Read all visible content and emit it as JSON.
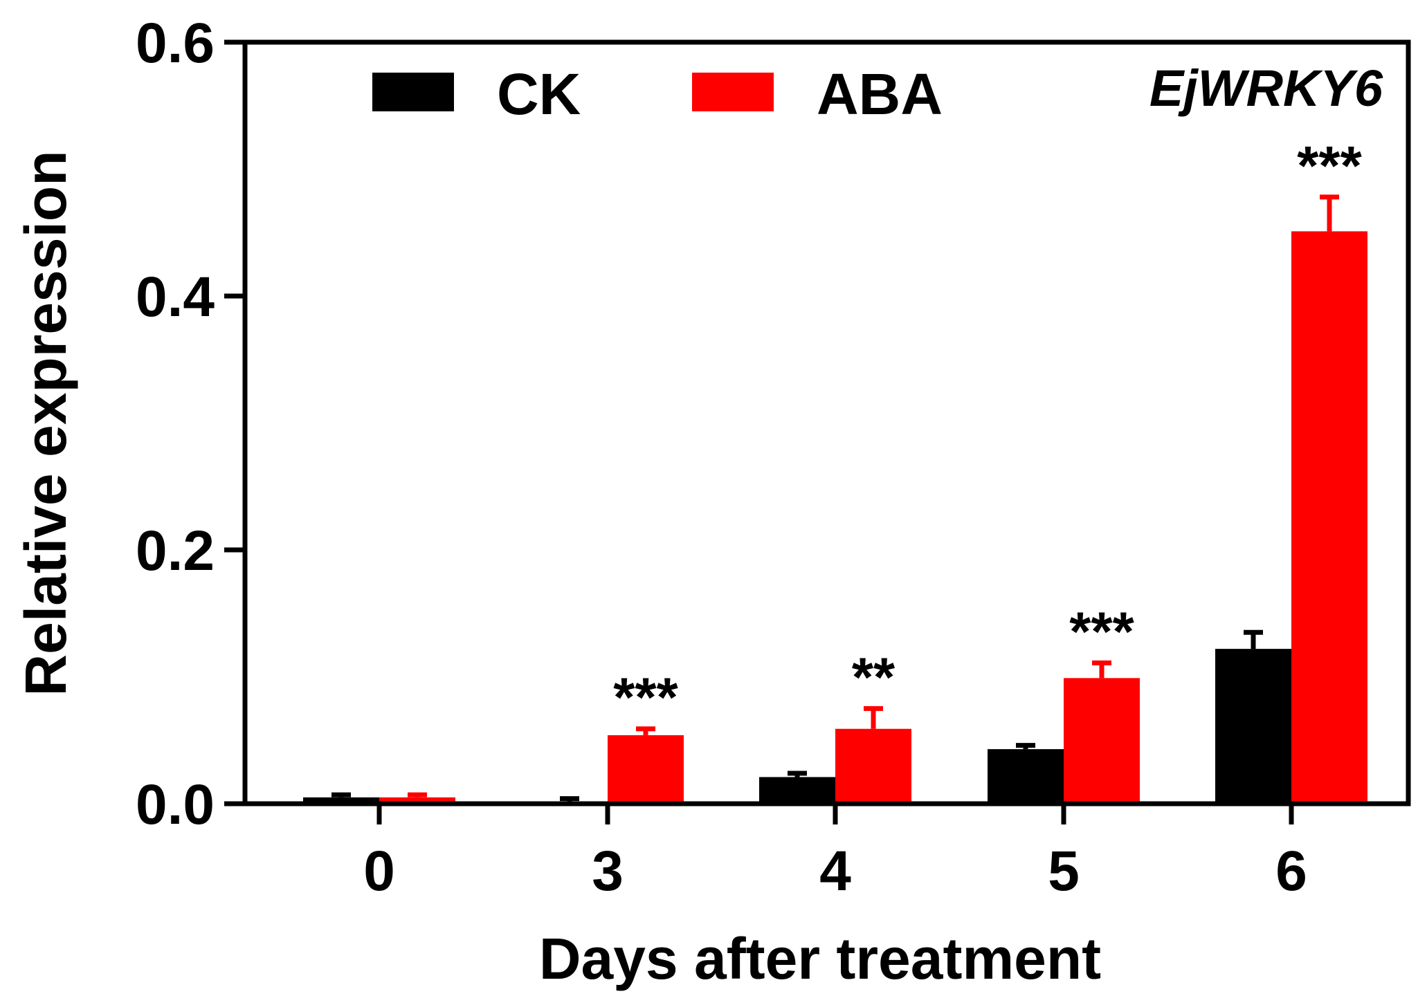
{
  "chart_data": {
    "type": "bar",
    "title": "EjWRKY6",
    "xlabel": "Days after treatment",
    "ylabel": "Relative expression",
    "categories": [
      "0",
      "3",
      "4",
      "5",
      "6"
    ],
    "ylim": [
      0,
      0.6
    ],
    "yticks": [
      "0.0",
      "0.2",
      "0.4",
      "0.6"
    ],
    "legend_position": "top",
    "series": [
      {
        "name": "CK",
        "color": "#000000",
        "values": [
          0.005,
          0.001,
          0.021,
          0.043,
          0.122
        ],
        "errors": [
          0.002,
          0.003,
          0.003,
          0.003,
          0.013
        ]
      },
      {
        "name": "ABA",
        "color": "#ff0000",
        "values": [
          0.005,
          0.054,
          0.059,
          0.099,
          0.451
        ],
        "errors": [
          0.002,
          0.005,
          0.016,
          0.012,
          0.027
        ]
      }
    ],
    "significance": [
      "",
      "***",
      "**",
      "***",
      "***"
    ]
  }
}
